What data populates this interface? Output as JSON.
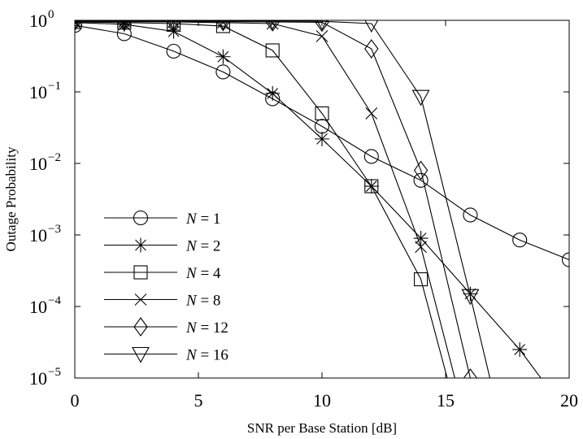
{
  "chart_data": {
    "type": "line",
    "title": "",
    "xlabel": "SNR per Base Station [dB]",
    "ylabel": "Outage Probability",
    "xlim": [
      0,
      20
    ],
    "ylim": [
      1e-05,
      1
    ],
    "yscale": "log",
    "grid": false,
    "legend_position": "lower-left",
    "x_ticks": [
      0,
      5,
      10,
      15,
      20
    ],
    "y_ticks": [
      {
        "base": "10",
        "exp": "0",
        "value": 1
      },
      {
        "base": "10",
        "exp": "−1",
        "value": 0.1
      },
      {
        "base": "10",
        "exp": "−2",
        "value": 0.01
      },
      {
        "base": "10",
        "exp": "−3",
        "value": 0.001
      },
      {
        "base": "10",
        "exp": "−4",
        "value": 0.0001
      },
      {
        "base": "10",
        "exp": "−5",
        "value": 1e-05
      }
    ],
    "series": [
      {
        "name": "N = 1",
        "marker": "circle",
        "x": [
          0,
          2,
          4,
          6,
          8,
          10,
          12,
          14,
          16,
          18,
          20
        ],
        "y": [
          0.85,
          0.65,
          0.37,
          0.19,
          0.08,
          0.033,
          0.0125,
          0.0058,
          0.0019,
          0.00085,
          0.00045
        ]
      },
      {
        "name": "N = 2",
        "marker": "star",
        "x": [
          0,
          2,
          4,
          6,
          8,
          10,
          12,
          14,
          16,
          18,
          19.5
        ],
        "y": [
          0.93,
          0.88,
          0.7,
          0.31,
          0.095,
          0.022,
          0.0048,
          0.0009,
          0.00015,
          2.5e-05,
          5e-06
        ]
      },
      {
        "name": "N = 4",
        "marker": "square",
        "x": [
          0,
          2,
          4,
          6,
          8,
          10,
          12,
          14,
          15.3
        ],
        "y": [
          0.95,
          0.93,
          0.9,
          0.83,
          0.38,
          0.05,
          0.0048,
          0.00024,
          5e-06
        ]
      },
      {
        "name": "N = 8",
        "marker": "x",
        "x": [
          0,
          2,
          4,
          6,
          8,
          10,
          12,
          14,
          15.6
        ],
        "y": [
          0.97,
          0.96,
          0.95,
          0.93,
          0.9,
          0.6,
          0.05,
          0.00068,
          5e-06
        ]
      },
      {
        "name": "N = 12",
        "marker": "diamond",
        "x": [
          0,
          2,
          4,
          6,
          8,
          10,
          12,
          14,
          16,
          16.5
        ],
        "y": [
          0.97,
          0.96,
          0.96,
          0.96,
          0.95,
          0.94,
          0.4,
          0.008,
          1e-05,
          5e-06
        ]
      },
      {
        "name": "N = 16",
        "marker": "triangle-down",
        "x": [
          0,
          2,
          4,
          6,
          8,
          10,
          12,
          14,
          16,
          17
        ],
        "y": [
          0.98,
          0.98,
          0.98,
          0.98,
          0.98,
          0.97,
          0.9,
          0.085,
          0.00014,
          5e-06
        ]
      }
    ]
  }
}
